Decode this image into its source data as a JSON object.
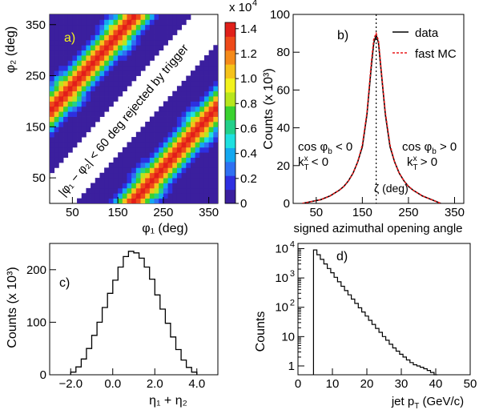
{
  "chart_data": [
    {
      "id": "a",
      "type": "heatmap",
      "panel_label": "a)",
      "xlabel": "φ₁ (deg)",
      "ylabel": "φ₂ (deg)",
      "xlim": [
        0,
        370
      ],
      "ylim": [
        0,
        370
      ],
      "xticks": [
        50,
        150,
        250,
        350
      ],
      "yticks": [
        50,
        150,
        250,
        350
      ],
      "x_tick_labels": [
        "50",
        "150",
        "250",
        "350"
      ],
      "y_tick_labels": [
        "50",
        "150",
        "250",
        "350"
      ],
      "xticklabels": [
        "50",
        "150",
        "250",
        "350"
      ],
      "yticklabels": [
        "50",
        "150",
        "250",
        "350"
      ],
      "x_tick_positions": [
        50,
        150,
        250,
        350
      ],
      "y_tick_positions": [
        50,
        150,
        250,
        350
      ],
      "annotation": "|φ₁ − φ₂| < 60 deg rejected by trigger",
      "colorbar": {
        "exponent_label": "x 10",
        "exponent_power": "4",
        "ticks": [
          0,
          0.2,
          0.4,
          0.6,
          0.8,
          1.0,
          1.2,
          1.4
        ],
        "tick_labels": [
          "0",
          "0.2",
          "0.4",
          "0.6",
          "0.8",
          "1.0",
          "1.2",
          "1.4"
        ],
        "range": [
          0,
          1.45
        ],
        "colors": [
          "#3b1f9e",
          "#2e2fe0",
          "#2f70f2",
          "#14a8f0",
          "#1ee0e0",
          "#22d08a",
          "#3ad22f",
          "#b8e61c",
          "#f2f21c",
          "#f5c21a",
          "#f58a1a",
          "#ee4a1a",
          "#e0201a"
        ]
      },
      "peak_bands": [
        {
          "phi1_minus_phi2": 180,
          "peak_value": 1.4
        },
        {
          "phi1_minus_phi2": -180,
          "peak_value": 1.4
        }
      ],
      "hot_spots": [
        {
          "phi1": 40,
          "phi2": 220,
          "value": 1.4
        },
        {
          "phi1": 220,
          "phi2": 40,
          "value": 1.4
        },
        {
          "phi1": 150,
          "phi2": 330,
          "value": 1.3
        },
        {
          "phi1": 330,
          "phi2": 150,
          "value": 1.3
        }
      ],
      "band_width_deg": 60,
      "rejected_region_deg": 60
    },
    {
      "id": "b",
      "type": "line",
      "panel_label": "b)",
      "xlabel": "signed azimuthal opening angle",
      "ylabel": "Counts (x 10³)",
      "xlim": [
        0,
        370
      ],
      "ylim": [
        0,
        100
      ],
      "xticks": [
        50,
        150,
        250,
        350
      ],
      "yticks": [
        0,
        20,
        40,
        60,
        80,
        100
      ],
      "x_tick_labels": [
        "50",
        "150",
        "250",
        "350"
      ],
      "y_tick_labels": [
        "0",
        "20",
        "40",
        "60",
        "80",
        "100"
      ],
      "xticklabels": [
        "50",
        "150",
        "250",
        "350"
      ],
      "yticklabels": [
        "0",
        "20",
        "40",
        "60",
        "80",
        "100"
      ],
      "x_tick_positions": [
        50,
        150,
        250,
        350
      ],
      "y_tick_positions": [
        0,
        20,
        40,
        60,
        80,
        100
      ],
      "legend": {
        "placement": "top-right",
        "entries": [
          {
            "label": "data",
            "color": "#000000",
            "style": "solid"
          },
          {
            "label": "fast MC",
            "color": "#e8191a",
            "style": "dashed"
          }
        ]
      },
      "vertical_line": {
        "x": 180,
        "style": "dotted",
        "label": "ζ (deg)"
      },
      "annotations": {
        "left_line1": "cos φb < 0",
        "left_line2": "kTx < 0",
        "right_line1": "cos φb > 0",
        "right_line2": "kTx > 0"
      },
      "annotations_render": {
        "left_1_main": "cos φ",
        "left_1_sub": "b",
        "left_1_tail": " < 0",
        "left_2_main": "k",
        "left_2_sub": "T",
        "left_2_sup": "x",
        "left_2_tail": " < 0",
        "right_1_main": "cos φ",
        "right_1_sub": "b",
        "right_1_tail": " > 0",
        "right_2_main": "k",
        "right_2_sub": "T",
        "right_2_sup": "x",
        "right_2_tail": " > 0"
      },
      "series": [
        {
          "name": "data",
          "color": "#000000",
          "x": [
            20,
            60,
            80,
            100,
            110,
            120,
            130,
            140,
            150,
            160,
            170,
            175,
            180,
            185,
            190,
            200,
            210,
            220,
            230,
            240,
            250,
            260,
            280,
            300,
            320
          ],
          "values": [
            0,
            2,
            4,
            7,
            9,
            12,
            16,
            22,
            30,
            47,
            74,
            85,
            89,
            85,
            72,
            47,
            30,
            22,
            16,
            12,
            9,
            7,
            4,
            2,
            0
          ]
        },
        {
          "name": "fast MC",
          "color": "#e8191a",
          "x": [
            20,
            60,
            80,
            100,
            110,
            120,
            130,
            140,
            150,
            160,
            170,
            175,
            180,
            185,
            190,
            200,
            210,
            220,
            230,
            240,
            250,
            260,
            280,
            300,
            320
          ],
          "values": [
            0,
            2,
            4,
            7,
            9,
            12,
            16,
            22,
            31,
            48,
            76,
            87,
            90,
            86,
            73,
            48,
            31,
            22,
            16,
            12,
            9,
            7,
            4,
            2,
            0
          ]
        }
      ]
    },
    {
      "id": "c",
      "type": "line",
      "panel_label": "c)",
      "xlabel": "η₁ + η₂",
      "ylabel": "Counts (x 10³)",
      "xlim": [
        -3.0,
        5.0
      ],
      "ylim": [
        0,
        250
      ],
      "xticks": [
        -2.0,
        0.0,
        2.0,
        4.0
      ],
      "yticks": [
        0,
        100,
        200
      ],
      "x_tick_labels": [
        "−2.0",
        "0.0",
        "2.0",
        "4.0"
      ],
      "y_tick_labels": [
        "0",
        "100",
        "200"
      ],
      "xticklabels": [
        "−2.0",
        "0.0",
        "2.0",
        "4.0"
      ],
      "yticklabels": [
        "0",
        "100",
        "200"
      ],
      "x_tick_positions": [
        -2.0,
        0.0,
        2.0,
        4.0
      ],
      "y_tick_positions": [
        0,
        100,
        200
      ],
      "histogram": true,
      "bin_edges": [
        -2.0,
        -1.75,
        -1.5,
        -1.25,
        -1.0,
        -0.75,
        -0.5,
        -0.25,
        0.0,
        0.25,
        0.5,
        0.75,
        1.0,
        1.25,
        1.5,
        1.75,
        2.0,
        2.25,
        2.5,
        2.75,
        3.0,
        3.25,
        3.5,
        3.75,
        4.0
      ],
      "series": [
        {
          "name": "",
          "values": [
            5,
            15,
            30,
            50,
            75,
            100,
            128,
            155,
            180,
            205,
            225,
            235,
            232,
            222,
            205,
            182,
            152,
            125,
            98,
            72,
            48,
            28,
            14,
            5
          ]
        }
      ]
    },
    {
      "id": "d",
      "type": "line",
      "panel_label": "d)",
      "xlabel": "jet pT (GeV/c)",
      "xlabel_main": "jet p",
      "xlabel_sub": "T",
      "xlabel_tail": " (GeV/c)",
      "ylabel": "Counts",
      "xlim": [
        0,
        50
      ],
      "ylim": [
        0.5,
        15000
      ],
      "log_y": true,
      "xticks": [
        0,
        10,
        20,
        30,
        40,
        50
      ],
      "yticks": [
        1,
        10,
        100,
        1000,
        10000
      ],
      "x_tick_labels": [
        "0",
        "10",
        "20",
        "30",
        "40",
        "50"
      ],
      "xticklabels": [
        "0",
        "10",
        "20",
        "30",
        "40",
        "50"
      ],
      "x_tick_positions": [
        0,
        10,
        20,
        30,
        40,
        50
      ],
      "y_tick_positions": [
        1,
        10,
        100,
        1000,
        10000
      ],
      "y_tick_labels_base": "10",
      "y_tick_labels_exp": [
        "0",
        "1",
        "2",
        "3",
        "4"
      ],
      "y_tick_labels_render": [
        "1",
        "10",
        "10",
        "10",
        "10"
      ],
      "y_tick_labels_render_sup": [
        "",
        "",
        "2",
        "3",
        "4"
      ],
      "histogram": true,
      "series": [
        {
          "name": "",
          "x": [
            5,
            6,
            7,
            8,
            9,
            10,
            11,
            12,
            13,
            14,
            15,
            16,
            17,
            18,
            19,
            20,
            21,
            22,
            23,
            24,
            25,
            26,
            27,
            28,
            29,
            30,
            31,
            32,
            33,
            34,
            35,
            36,
            37,
            38,
            39,
            40
          ],
          "values": [
            9000,
            6200,
            4300,
            3000,
            2100,
            1500,
            1050,
            740,
            520,
            370,
            265,
            190,
            135,
            96,
            69,
            50,
            36,
            26,
            19,
            14,
            10,
            7.5,
            5.5,
            4.1,
            3.2,
            2.5,
            2,
            1.6,
            1.3,
            1.1,
            1,
            0.9,
            0.8,
            0.7,
            0.6,
            0.5
          ]
        }
      ]
    }
  ]
}
